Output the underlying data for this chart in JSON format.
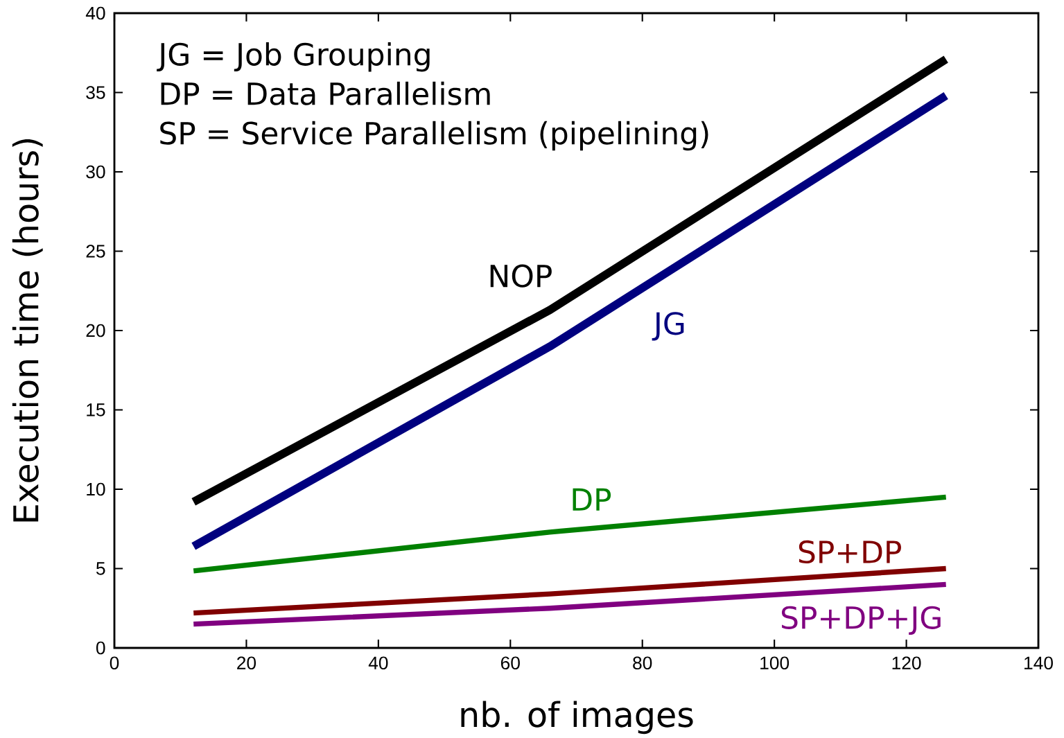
{
  "chart_data": {
    "type": "line",
    "xlabel": "nb. of images",
    "ylabel": "Execution time (hours)",
    "x": [
      12,
      66,
      126
    ],
    "series": [
      {
        "name": "NOP",
        "color": "#000000",
        "values": [
          9.2,
          21.3,
          37.1
        ]
      },
      {
        "name": "JG",
        "color": "#00007f",
        "values": [
          6.4,
          19.0,
          34.8
        ]
      },
      {
        "name": "DP",
        "color": "#008000",
        "values": [
          4.85,
          7.3,
          9.5
        ]
      },
      {
        "name": "SP+DP",
        "color": "#800000",
        "values": [
          2.2,
          3.4,
          5.0
        ]
      },
      {
        "name": "SP+DP+JG",
        "color": "#800080",
        "values": [
          1.5,
          2.5,
          4.0
        ]
      }
    ],
    "xlim": [
      0,
      140
    ],
    "ylim": [
      0,
      40
    ],
    "xticks": [
      0,
      20,
      40,
      60,
      80,
      100,
      120,
      140
    ],
    "yticks": [
      0,
      5,
      10,
      15,
      20,
      25,
      30,
      35,
      40
    ],
    "annotations": [
      "JG = Job Grouping",
      "DP = Data Parallelism",
      "SP = Service Parallelism (pipelining)"
    ]
  }
}
